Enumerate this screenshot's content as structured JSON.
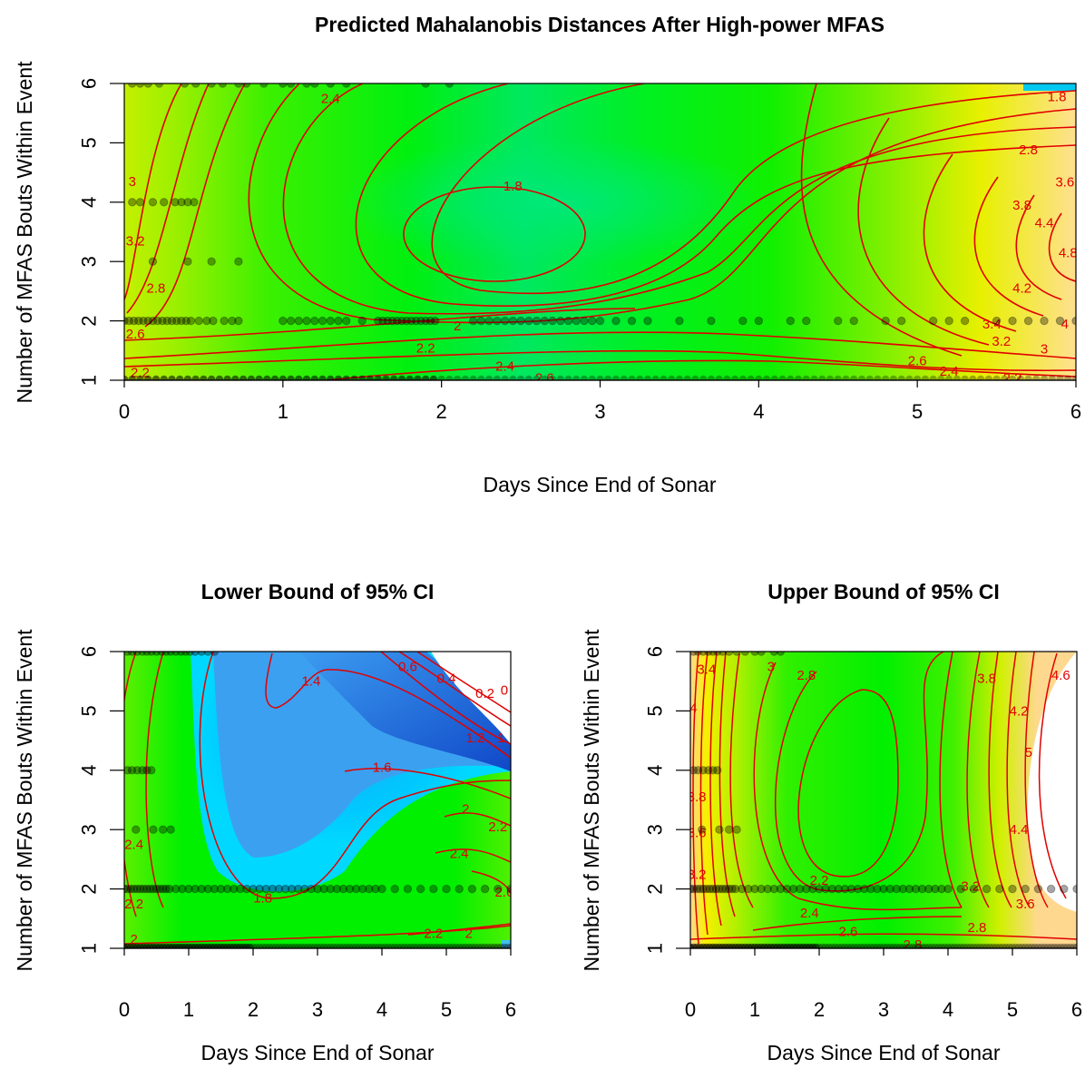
{
  "chart_data": [
    {
      "type": "heatmap",
      "panel": "main",
      "title": "Predicted Mahalanobis Distances After High-power MFAS",
      "xlabel": "Days Since End of Sonar",
      "ylabel": "Number of MFAS Bouts Within Event",
      "xlim": [
        0,
        6
      ],
      "ylim": [
        1,
        6
      ],
      "xticks": [
        "0",
        "1",
        "2",
        "3",
        "4",
        "5",
        "6"
      ],
      "yticks": [
        "1",
        "2",
        "3",
        "4",
        "5",
        "6"
      ],
      "colorscale": {
        "low": "#00b4ff",
        "mid_low": "#00e85a",
        "mid": "#00f000",
        "mid_high": "#c8f000",
        "high": "#f8f000",
        "top": "#ffd2a0"
      },
      "contour_color": "#e00000",
      "contour_labels": [
        {
          "text": "1.8",
          "x": 2.45,
          "y": 4.27
        },
        {
          "text": "1.8",
          "x": 5.88,
          "y": 5.78
        },
        {
          "text": "2",
          "x": 2.1,
          "y": 1.92
        },
        {
          "text": "2.2",
          "x": 1.9,
          "y": 1.54
        },
        {
          "text": "2.2",
          "x": 0.1,
          "y": 1.13
        },
        {
          "text": "2.2",
          "x": 5.6,
          "y": 1.04
        },
        {
          "text": "2.4",
          "x": 1.3,
          "y": 5.75
        },
        {
          "text": "2.4",
          "x": 2.4,
          "y": 1.24
        },
        {
          "text": "2.4",
          "x": 5.2,
          "y": 1.15
        },
        {
          "text": "2.6",
          "x": 0.07,
          "y": 1.78
        },
        {
          "text": "2.6",
          "x": 2.65,
          "y": 1.04
        },
        {
          "text": "2.6",
          "x": 5.0,
          "y": 1.33
        },
        {
          "text": "2.8",
          "x": 0.2,
          "y": 2.55
        },
        {
          "text": "2.8",
          "x": 5.7,
          "y": 4.88
        },
        {
          "text": "3",
          "x": 0.05,
          "y": 4.35
        },
        {
          "text": "3",
          "x": 5.8,
          "y": 1.53
        },
        {
          "text": "3.2",
          "x": 0.07,
          "y": 3.35
        },
        {
          "text": "3.2",
          "x": 5.53,
          "y": 1.66
        },
        {
          "text": "3.4",
          "x": 5.47,
          "y": 1.95
        },
        {
          "text": "3.6",
          "x": 5.93,
          "y": 4.34
        },
        {
          "text": "3.8",
          "x": 5.66,
          "y": 3.95
        },
        {
          "text": "4",
          "x": 5.93,
          "y": 1.95
        },
        {
          "text": "4.2",
          "x": 5.66,
          "y": 2.55
        },
        {
          "text": "4.4",
          "x": 5.8,
          "y": 3.65
        },
        {
          "text": "4.8",
          "x": 5.95,
          "y": 3.15
        }
      ],
      "observations": [
        {
          "y": 6,
          "x": [
            0.05,
            0.1,
            0.15,
            0.22,
            0.38,
            0.45,
            0.55,
            0.62,
            0.72,
            0.77,
            0.88,
            1.0,
            1.05,
            1.15,
            1.2,
            1.3,
            1.4,
            1.9,
            2.05
          ]
        },
        {
          "y": 4,
          "x": [
            0.05,
            0.1,
            0.18,
            0.25,
            0.32,
            0.36,
            0.4,
            0.44
          ]
        },
        {
          "y": 3,
          "x": [
            0.18,
            0.4,
            0.55,
            0.72
          ]
        },
        {
          "y": 2,
          "x": [
            0.0,
            0.03,
            0.06,
            0.09,
            0.12,
            0.15,
            0.18,
            0.21,
            0.24,
            0.27,
            0.3,
            0.33,
            0.36,
            0.39,
            0.42,
            0.47,
            0.52,
            0.56,
            0.63,
            0.68,
            0.72,
            1.0,
            1.05,
            1.1,
            1.15,
            1.2,
            1.25,
            1.3,
            1.35,
            1.4,
            1.5,
            1.6,
            1.63,
            1.66,
            1.69,
            1.72,
            1.75,
            1.78,
            1.81,
            1.84,
            1.87,
            1.9,
            1.93,
            1.96,
            2.2,
            2.25,
            2.3,
            2.35,
            2.4,
            2.45,
            2.5,
            2.55,
            2.6,
            2.65,
            2.7,
            2.75,
            2.8,
            2.85,
            2.9,
            2.95,
            3.0,
            3.1,
            3.2,
            3.3,
            3.5,
            3.7,
            3.9,
            4.0,
            4.2,
            4.3,
            4.5,
            4.6,
            4.8,
            4.9,
            5.1,
            5.2,
            5.3,
            5.5,
            5.6,
            5.7,
            5.8,
            5.9,
            6.0
          ]
        }
      ]
    },
    {
      "type": "heatmap",
      "panel": "lower",
      "title": "Lower Bound of 95% CI",
      "xlabel": "Days Since End of Sonar",
      "ylabel": "Number of MFAS Bouts Within Event",
      "xlim": [
        0,
        6
      ],
      "ylim": [
        1,
        6
      ],
      "xticks": [
        "0",
        "1",
        "2",
        "3",
        "4",
        "5",
        "6"
      ],
      "yticks": [
        "1",
        "2",
        "3",
        "4",
        "5",
        "6"
      ],
      "colorscale": {
        "blue_deep": "#1a5ad8",
        "blue": "#3c9cf0",
        "cyan": "#00c8ff",
        "green": "#00f000",
        "yellow_green": "#a8f000"
      },
      "contour_color": "#e00000",
      "contour_labels": [
        {
          "text": "0",
          "x": 5.9,
          "y": 5.35
        },
        {
          "text": "0.2",
          "x": 5.6,
          "y": 5.3
        },
        {
          "text": "0.4",
          "x": 5.0,
          "y": 5.55
        },
        {
          "text": "0.6",
          "x": 4.4,
          "y": 5.75
        },
        {
          "text": "1",
          "x": 5.85,
          "y": 4.55
        },
        {
          "text": "1.2",
          "x": 5.45,
          "y": 4.55
        },
        {
          "text": "1.4",
          "x": 2.9,
          "y": 5.5
        },
        {
          "text": "1.6",
          "x": 4.0,
          "y": 4.05
        },
        {
          "text": "1.8",
          "x": 2.15,
          "y": 1.85
        },
        {
          "text": "2",
          "x": 5.3,
          "y": 3.35
        },
        {
          "text": "2",
          "x": 5.35,
          "y": 1.25
        },
        {
          "text": "2",
          "x": 0.15,
          "y": 1.15
        },
        {
          "text": "2.2",
          "x": 5.8,
          "y": 3.05
        },
        {
          "text": "2.2",
          "x": 4.8,
          "y": 1.25
        },
        {
          "text": "2.2",
          "x": 0.15,
          "y": 1.75
        },
        {
          "text": "2.4",
          "x": 0.15,
          "y": 2.75
        },
        {
          "text": "2.4",
          "x": 5.2,
          "y": 2.6
        },
        {
          "text": "2.6",
          "x": 5.9,
          "y": 1.95
        }
      ],
      "observations": [
        {
          "y": 6,
          "x": [
            0.05,
            0.12,
            0.2,
            0.28,
            0.35,
            0.42,
            0.5,
            0.58,
            0.65,
            0.72,
            0.8,
            0.88,
            0.95,
            1.02,
            1.1,
            1.2,
            1.3,
            1.4
          ]
        },
        {
          "y": 4,
          "x": [
            0.05,
            0.12,
            0.2,
            0.28,
            0.35,
            0.42
          ]
        },
        {
          "y": 3,
          "x": [
            0.18,
            0.45,
            0.6,
            0.72
          ]
        },
        {
          "y": 2,
          "x": [
            0.0,
            0.05,
            0.1,
            0.15,
            0.2,
            0.25,
            0.3,
            0.35,
            0.4,
            0.45,
            0.5,
            0.55,
            0.6,
            0.65,
            0.7,
            0.8,
            0.9,
            1.0,
            1.1,
            1.2,
            1.3,
            1.4,
            1.5,
            1.6,
            1.7,
            1.8,
            1.9,
            2.0,
            2.1,
            2.2,
            2.3,
            2.4,
            2.5,
            2.6,
            2.7,
            2.8,
            2.9,
            3.0,
            3.1,
            3.2,
            3.3,
            3.4,
            3.5,
            3.6,
            3.7,
            3.8,
            3.9,
            4.0,
            4.2,
            4.4,
            4.6,
            4.8,
            5.0,
            5.2,
            5.4,
            5.6,
            5.8,
            6.0
          ]
        }
      ]
    },
    {
      "type": "heatmap",
      "panel": "upper",
      "title": "Upper Bound of 95% CI",
      "xlabel": "Days Since End of Sonar",
      "ylabel": "Number of MFAS Bouts Within Event",
      "xlim": [
        0,
        6
      ],
      "ylim": [
        1,
        6
      ],
      "xticks": [
        "0",
        "1",
        "2",
        "3",
        "4",
        "5",
        "6"
      ],
      "yticks": [
        "1",
        "2",
        "3",
        "4",
        "5",
        "6"
      ],
      "colorscale": {
        "green": "#00f000",
        "yellow_green": "#a8f000",
        "yellow": "#f8f000",
        "orange": "#ffd2a0",
        "white": "#ffffff"
      },
      "contour_color": "#e00000",
      "contour_labels": [
        {
          "text": "2.2",
          "x": 2.0,
          "y": 2.15
        },
        {
          "text": "2.4",
          "x": 1.85,
          "y": 1.6
        },
        {
          "text": "2.6",
          "x": 2.45,
          "y": 1.28
        },
        {
          "text": "2.8",
          "x": 1.8,
          "y": 5.6
        },
        {
          "text": "2.8",
          "x": 3.45,
          "y": 1.06
        },
        {
          "text": "2.8",
          "x": 4.45,
          "y": 1.35
        },
        {
          "text": "3",
          "x": 1.25,
          "y": 5.75
        },
        {
          "text": "3.2",
          "x": 0.1,
          "y": 2.25
        },
        {
          "text": "3.2",
          "x": 4.35,
          "y": 2.05
        },
        {
          "text": "3.4",
          "x": 0.25,
          "y": 5.7
        },
        {
          "text": "3.6",
          "x": 0.1,
          "y": 2.95
        },
        {
          "text": "3.6",
          "x": 5.2,
          "y": 1.75
        },
        {
          "text": "3.8",
          "x": 0.1,
          "y": 3.55
        },
        {
          "text": "3.8",
          "x": 4.6,
          "y": 5.55
        },
        {
          "text": "4",
          "x": 0.05,
          "y": 5.05
        },
        {
          "text": "4.2",
          "x": 5.1,
          "y": 5.0
        },
        {
          "text": "4.4",
          "x": 5.1,
          "y": 3.0
        },
        {
          "text": "4.6",
          "x": 5.75,
          "y": 5.6
        },
        {
          "text": "5",
          "x": 5.25,
          "y": 4.3
        }
      ],
      "observations": [
        {
          "y": 6,
          "x": [
            0.05,
            0.12,
            0.2,
            0.28,
            0.35,
            0.42,
            0.5,
            0.6,
            0.72,
            0.85,
            1.0,
            1.1,
            1.3,
            1.4
          ]
        },
        {
          "y": 4,
          "x": [
            0.05,
            0.12,
            0.2,
            0.28,
            0.35,
            0.42
          ]
        },
        {
          "y": 3,
          "x": [
            0.18,
            0.45,
            0.6,
            0.72
          ]
        },
        {
          "y": 2,
          "x": [
            0.0,
            0.05,
            0.1,
            0.15,
            0.2,
            0.25,
            0.3,
            0.35,
            0.4,
            0.45,
            0.5,
            0.55,
            0.6,
            0.65,
            0.7,
            0.8,
            0.9,
            1.0,
            1.1,
            1.2,
            1.3,
            1.4,
            1.5,
            1.6,
            1.7,
            1.8,
            1.9,
            2.0,
            2.1,
            2.2,
            2.3,
            2.4,
            2.5,
            2.6,
            2.7,
            2.8,
            2.9,
            3.0,
            3.1,
            3.2,
            3.3,
            3.4,
            3.5,
            3.6,
            3.7,
            3.8,
            3.9,
            4.0,
            4.2,
            4.4,
            4.6,
            4.8,
            5.0,
            5.2,
            5.4,
            5.6,
            5.8,
            6.0
          ]
        }
      ]
    }
  ]
}
